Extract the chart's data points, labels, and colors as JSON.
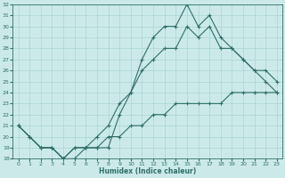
{
  "xlabel": "Humidex (Indice chaleur)",
  "ylabel": "",
  "background_color": "#cce9e9",
  "line_color": "#2d7068",
  "grid_color": "#aad4d4",
  "x": [
    0,
    1,
    2,
    3,
    4,
    5,
    6,
    7,
    8,
    9,
    10,
    11,
    12,
    13,
    14,
    15,
    16,
    17,
    18,
    19,
    20,
    21,
    22,
    23
  ],
  "y_top": [
    21,
    20,
    19,
    19,
    18,
    18,
    19,
    19,
    19,
    22,
    24,
    27,
    29,
    30,
    30,
    32,
    30,
    31,
    29,
    28,
    27,
    26,
    25,
    24
  ],
  "y_mid": [
    21,
    20,
    19,
    19,
    18,
    19,
    19,
    20,
    21,
    23,
    24,
    26,
    27,
    28,
    28,
    30,
    29,
    30,
    28,
    28,
    27,
    26,
    26,
    25
  ],
  "y_bot": [
    21,
    20,
    19,
    19,
    18,
    19,
    19,
    19,
    20,
    20,
    21,
    21,
    22,
    22,
    23,
    23,
    23,
    23,
    23,
    24,
    24,
    24,
    24,
    24
  ],
  "ylim": [
    18,
    32
  ],
  "xlim": [
    -0.5,
    23.5
  ],
  "yticks": [
    18,
    19,
    20,
    21,
    22,
    23,
    24,
    25,
    26,
    27,
    28,
    29,
    30,
    31,
    32
  ],
  "xticks": [
    0,
    1,
    2,
    3,
    4,
    5,
    6,
    7,
    8,
    9,
    10,
    11,
    12,
    13,
    14,
    15,
    16,
    17,
    18,
    19,
    20,
    21,
    22,
    23
  ],
  "xlabel_fontsize": 5.5,
  "tick_fontsize": 4.5
}
